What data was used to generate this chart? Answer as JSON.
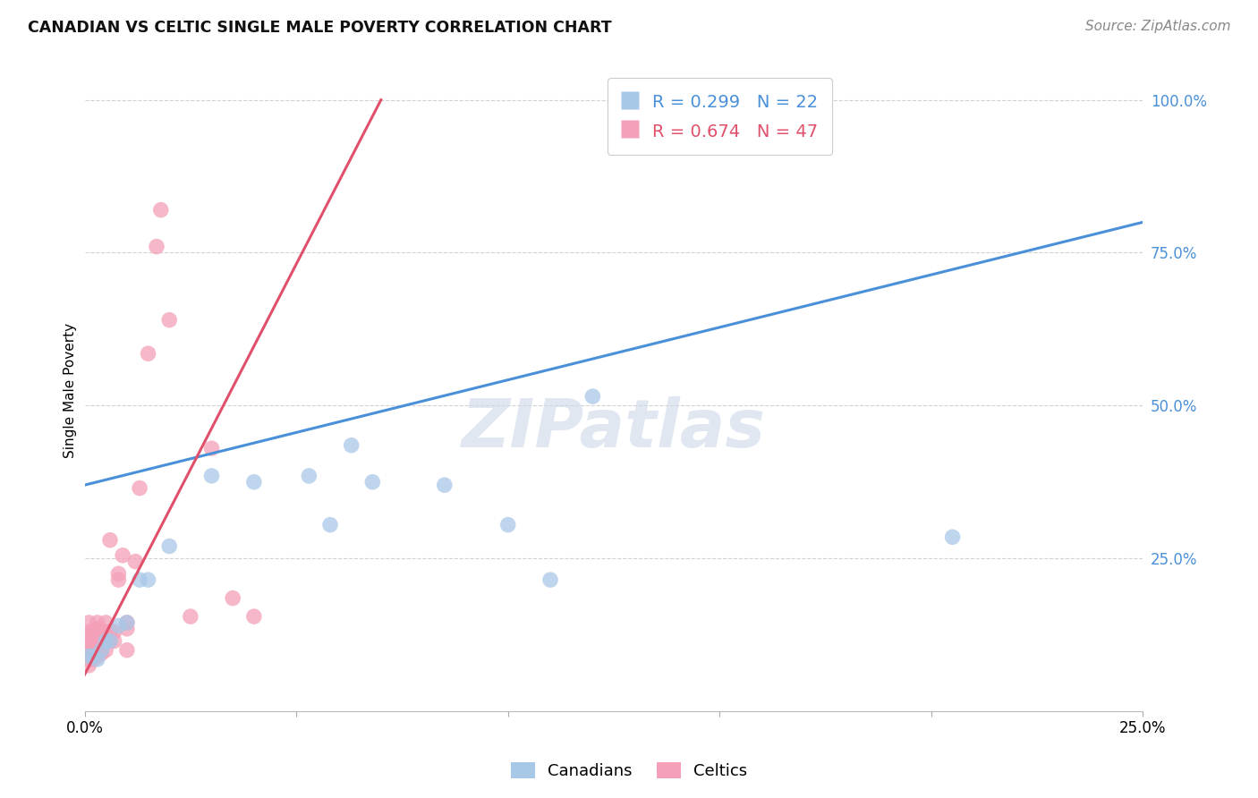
{
  "title": "CANADIAN VS CELTIC SINGLE MALE POVERTY CORRELATION CHART",
  "source": "Source: ZipAtlas.com",
  "ylabel": "Single Male Poverty",
  "xlim": [
    0.0,
    0.25
  ],
  "ylim": [
    0.0,
    1.05
  ],
  "canadian_R": 0.299,
  "canadian_N": 22,
  "celtic_R": 0.674,
  "celtic_N": 47,
  "canadian_color": "#a8c8e8",
  "celtic_color": "#f4a0b8",
  "canadian_line_color": "#4a90d9",
  "celtic_line_color": "#e0506a",
  "watermark": "ZIPatlas",
  "watermark_color": "#ccd8e8",
  "canadian_x": [
    0.001,
    0.002,
    0.003,
    0.004,
    0.005,
    0.006,
    0.008,
    0.01,
    0.013,
    0.015,
    0.02,
    0.03,
    0.04,
    0.053,
    0.058,
    0.063,
    0.068,
    0.085,
    0.1,
    0.11,
    0.12,
    0.205
  ],
  "canadian_y": [
    0.09,
    0.09,
    0.085,
    0.1,
    0.115,
    0.115,
    0.14,
    0.145,
    0.215,
    0.215,
    0.27,
    0.385,
    0.375,
    0.385,
    0.305,
    0.435,
    0.375,
    0.37,
    0.305,
    0.215,
    0.515,
    0.285
  ],
  "celtic_x": [
    0.001,
    0.001,
    0.001,
    0.001,
    0.001,
    0.001,
    0.001,
    0.001,
    0.001,
    0.002,
    0.002,
    0.002,
    0.002,
    0.002,
    0.003,
    0.003,
    0.003,
    0.003,
    0.003,
    0.004,
    0.004,
    0.004,
    0.005,
    0.005,
    0.005,
    0.005,
    0.006,
    0.006,
    0.006,
    0.007,
    0.007,
    0.008,
    0.008,
    0.009,
    0.01,
    0.01,
    0.01,
    0.012,
    0.013,
    0.015,
    0.017,
    0.018,
    0.02,
    0.025,
    0.03,
    0.035,
    0.04
  ],
  "celtic_y": [
    0.075,
    0.085,
    0.09,
    0.1,
    0.105,
    0.115,
    0.12,
    0.13,
    0.145,
    0.085,
    0.095,
    0.1,
    0.115,
    0.13,
    0.09,
    0.1,
    0.115,
    0.135,
    0.145,
    0.095,
    0.115,
    0.13,
    0.1,
    0.115,
    0.13,
    0.145,
    0.115,
    0.13,
    0.28,
    0.115,
    0.13,
    0.215,
    0.225,
    0.255,
    0.1,
    0.135,
    0.145,
    0.245,
    0.365,
    0.585,
    0.76,
    0.82,
    0.64,
    0.155,
    0.43,
    0.185,
    0.155
  ],
  "canadian_line_x0": 0.0,
  "canadian_line_y0": 0.37,
  "canadian_line_x1": 0.25,
  "canadian_line_y1": 0.8,
  "celtic_line_x0": 0.0,
  "celtic_line_y0": 0.06,
  "celtic_line_x1": 0.07,
  "celtic_line_y1": 1.0
}
